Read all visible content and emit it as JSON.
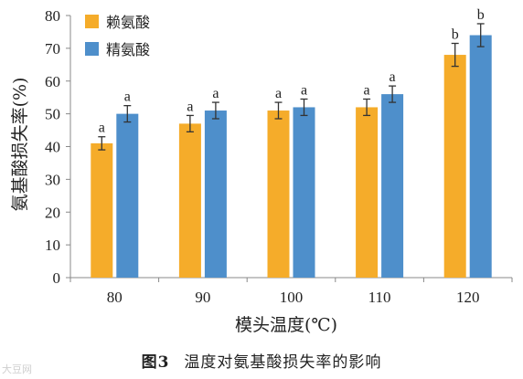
{
  "chart_data": {
    "type": "bar",
    "categories": [
      "80",
      "90",
      "100",
      "110",
      "120"
    ],
    "series": [
      {
        "name": "赖氨酸",
        "color": "#F5AC2A",
        "values": [
          41,
          47,
          51,
          52,
          68
        ],
        "errors": [
          2,
          2.5,
          2.5,
          2.5,
          3.5
        ],
        "labels": [
          "a",
          "a",
          "a",
          "a",
          "b"
        ]
      },
      {
        "name": "精氨酸",
        "color": "#4E8FCB",
        "values": [
          50,
          51,
          52,
          56,
          74
        ],
        "errors": [
          2.5,
          2.5,
          2.5,
          2.5,
          3.5
        ],
        "labels": [
          "a",
          "a",
          "a",
          "a",
          "b"
        ]
      }
    ],
    "ylim": [
      0,
      80
    ],
    "yticks": [
      0,
      10,
      20,
      30,
      40,
      50,
      60,
      70,
      80
    ],
    "xlabel": "模头温度(℃)",
    "ylabel": "氨基酸损失率(%)",
    "legend_position": "top-left",
    "grid": false
  },
  "caption": {
    "number": "图3",
    "text": "温度对氨基酸损失率的影响"
  },
  "watermark": "大豆网"
}
